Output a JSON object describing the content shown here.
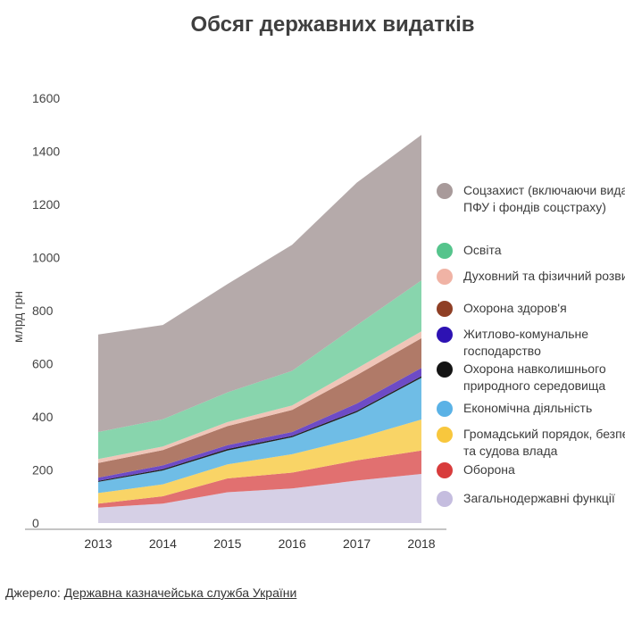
{
  "chart_data": {
    "type": "area",
    "stacked": true,
    "title": "Обсяг державних видатків",
    "ylabel": "млрд грн",
    "xlabel": "",
    "x": [
      "2013",
      "2014",
      "2015",
      "2016",
      "2017",
      "2018"
    ],
    "ylim": [
      0,
      1600
    ],
    "yticks": [
      "0",
      "200",
      "400",
      "600",
      "800",
      "1000",
      "1200",
      "1400",
      "1600"
    ],
    "legend_position": "right",
    "series": [
      {
        "name": "Загальнодержавні функції",
        "color": "#d6d0e6",
        "values": [
          58,
          73,
          116,
          130,
          160,
          185
        ]
      },
      {
        "name": "Оборона",
        "color": "#e17070",
        "values": [
          15,
          28,
          52,
          60,
          76,
          88
        ]
      },
      {
        "name": "Громадський порядок, безпека та судова влада",
        "color": "#f9d466",
        "values": [
          40,
          45,
          53,
          69,
          83,
          117
        ]
      },
      {
        "name": "Економічна діяльність",
        "color": "#6fbde6",
        "values": [
          42,
          52,
          52,
          64,
          98,
          157
        ]
      },
      {
        "name": "Охорона навколишнього природного середовища",
        "color": "#222222",
        "values": [
          4,
          5,
          6,
          5,
          6,
          6
        ]
      },
      {
        "name": "Житлово-комунальне господарство",
        "color": "#6d4bc6",
        "values": [
          12,
          14,
          14,
          15,
          27,
          31
        ]
      },
      {
        "name": "Охорона здоров'я",
        "color": "#b07a68",
        "values": [
          55,
          58,
          72,
          83,
          107,
          112
        ]
      },
      {
        "name": "Духовний та фізичний розвиток",
        "color": "#efc5b8",
        "values": [
          15,
          13,
          15,
          17,
          25,
          26
        ]
      },
      {
        "name": "Освіта",
        "color": "#88d5ad",
        "values": [
          102,
          103,
          112,
          130,
          163,
          192
        ]
      },
      {
        "name": "Соцзахист (включаючи видатки ПФУ і фондів соцстраху)",
        "color": "#b5aaaa",
        "values": [
          367,
          355,
          408,
          475,
          537,
          548
        ]
      }
    ]
  },
  "legend": [
    {
      "label": "Соцзахист (включаючи видатки ПФУ і фондів соцстраху)",
      "color": "#a89a9a"
    },
    {
      "label": "Освіта",
      "color": "#55c48c"
    },
    {
      "label": "Духовний та фізичний розвиток",
      "color": "#f0b3a5"
    },
    {
      "label": "Охорона здоров'я",
      "color": "#8f3f25"
    },
    {
      "label": "Житлово-комунальне господарство",
      "color": "#2d12b3"
    },
    {
      "label": "Охорона навколишнього природного середовища",
      "color": "#141414"
    },
    {
      "label": "Економічна діяльність",
      "color": "#5ab2e6"
    },
    {
      "label": "Громадський порядок, безпека та судова влада",
      "color": "#f8c73d"
    },
    {
      "label": "Оборона",
      "color": "#d83c3c"
    },
    {
      "label": "Загальнодержавні функції",
      "color": "#c5bddf"
    }
  ],
  "source": {
    "prefix": "Джерело: ",
    "link": "Державна казначейська служба України"
  }
}
